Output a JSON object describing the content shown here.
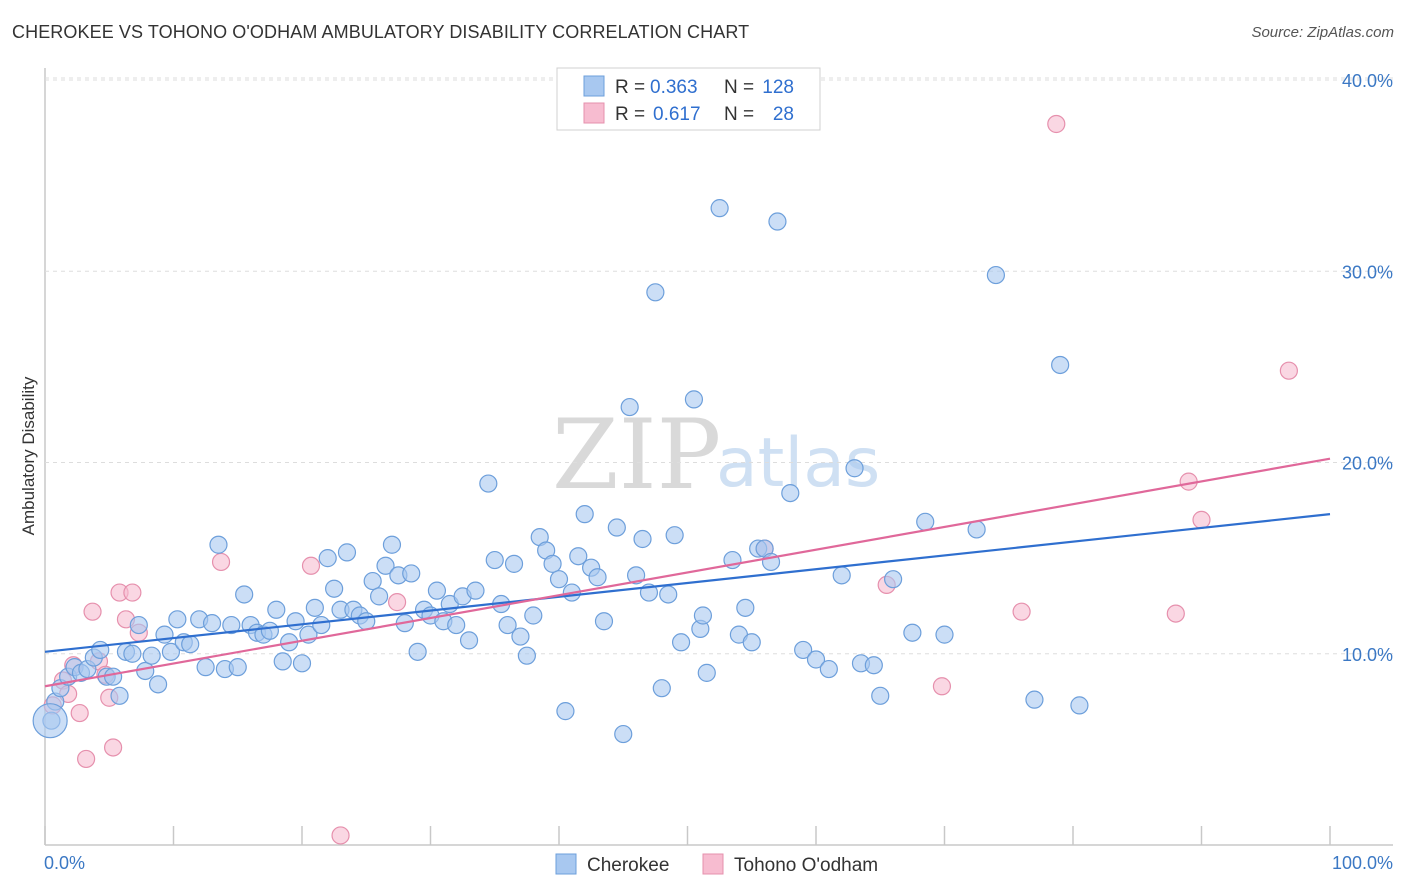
{
  "title": "CHEROKEE VS TOHONO O'ODHAM AMBULATORY DISABILITY CORRELATION CHART",
  "source": "Source: ZipAtlas.com",
  "watermark": {
    "zip": "ZIP",
    "atlas": "atlas"
  },
  "colors": {
    "blue_fill": "#a8c8f0",
    "blue_stroke": "#6d9fdb",
    "blue_line": "#2f6fcf",
    "pink_fill": "#f7bcd0",
    "pink_stroke": "#e690ad",
    "pink_line": "#e0689a",
    "grid": "#dddddd",
    "tick_text": "#3b78c4"
  },
  "legend": {
    "rows": [
      {
        "r_label": "R =",
        "r_value": "0.363",
        "n_label": "N =",
        "n_value": "128"
      },
      {
        "r_label": "R =",
        "r_value": "0.617",
        "n_label": "N =",
        "n_value": "28"
      }
    ]
  },
  "chart_data": {
    "type": "scatter",
    "title": "CHEROKEE VS TOHONO O'ODHAM AMBULATORY DISABILITY CORRELATION CHART",
    "xlabel": "",
    "ylabel": "Ambulatory Disability",
    "xlim": [
      0,
      100
    ],
    "ylim": [
      0,
      40
    ],
    "x_tick_labels": [
      "0.0%",
      "100.0%"
    ],
    "y_ticks": [
      10,
      20,
      30,
      40
    ],
    "y_tick_labels": [
      "10.0%",
      "20.0%",
      "30.0%",
      "40.0%"
    ],
    "grid": true,
    "legend_position": "top-center",
    "series": [
      {
        "name": "Cherokee",
        "color": "#a8c8f0",
        "trend": {
          "x": [
            0,
            100
          ],
          "y": [
            10.1,
            17.3
          ]
        },
        "points": [
          [
            0.5,
            6.5
          ],
          [
            0.8,
            7.5
          ],
          [
            1.2,
            8.2
          ],
          [
            1.8,
            8.8
          ],
          [
            2.3,
            9.3
          ],
          [
            2.8,
            9.0
          ],
          [
            3.3,
            9.2
          ],
          [
            3.8,
            9.8
          ],
          [
            4.3,
            10.2
          ],
          [
            4.8,
            8.8
          ],
          [
            5.3,
            8.8
          ],
          [
            5.8,
            7.8
          ],
          [
            6.3,
            10.1
          ],
          [
            6.8,
            10.0
          ],
          [
            7.3,
            11.5
          ],
          [
            7.8,
            9.1
          ],
          [
            8.3,
            9.9
          ],
          [
            8.8,
            8.4
          ],
          [
            9.3,
            11.0
          ],
          [
            9.8,
            10.1
          ],
          [
            10.3,
            11.8
          ],
          [
            10.8,
            10.6
          ],
          [
            11.3,
            10.5
          ],
          [
            12.0,
            11.8
          ],
          [
            12.5,
            9.3
          ],
          [
            13.0,
            11.6
          ],
          [
            13.5,
            15.7
          ],
          [
            14.0,
            9.2
          ],
          [
            14.5,
            11.5
          ],
          [
            15.0,
            9.3
          ],
          [
            15.5,
            13.1
          ],
          [
            16.0,
            11.5
          ],
          [
            16.5,
            11.1
          ],
          [
            17.0,
            11.0
          ],
          [
            17.5,
            11.2
          ],
          [
            18.0,
            12.3
          ],
          [
            18.5,
            9.6
          ],
          [
            19.0,
            10.6
          ],
          [
            19.5,
            11.7
          ],
          [
            20.0,
            9.5
          ],
          [
            20.5,
            11.0
          ],
          [
            21.0,
            12.4
          ],
          [
            21.5,
            11.5
          ],
          [
            22.0,
            15.0
          ],
          [
            22.5,
            13.4
          ],
          [
            23.0,
            12.3
          ],
          [
            23.5,
            15.3
          ],
          [
            24.0,
            12.3
          ],
          [
            24.5,
            12.0
          ],
          [
            25.0,
            11.7
          ],
          [
            25.5,
            13.8
          ],
          [
            26.0,
            13.0
          ],
          [
            26.5,
            14.6
          ],
          [
            27.0,
            15.7
          ],
          [
            27.5,
            14.1
          ],
          [
            28.0,
            11.6
          ],
          [
            28.5,
            14.2
          ],
          [
            29.0,
            10.1
          ],
          [
            29.5,
            12.3
          ],
          [
            30.0,
            12.0
          ],
          [
            30.5,
            13.3
          ],
          [
            31.0,
            11.7
          ],
          [
            31.5,
            12.6
          ],
          [
            32.0,
            11.5
          ],
          [
            32.5,
            13.0
          ],
          [
            33.0,
            10.7
          ],
          [
            33.5,
            13.3
          ],
          [
            34.5,
            18.9
          ],
          [
            35.0,
            14.9
          ],
          [
            35.5,
            12.6
          ],
          [
            36.0,
            11.5
          ],
          [
            36.5,
            14.7
          ],
          [
            37.0,
            10.9
          ],
          [
            37.5,
            9.9
          ],
          [
            38.0,
            12.0
          ],
          [
            38.5,
            16.1
          ],
          [
            39.0,
            15.4
          ],
          [
            39.5,
            14.7
          ],
          [
            40.0,
            13.9
          ],
          [
            40.5,
            7.0
          ],
          [
            41.0,
            13.2
          ],
          [
            41.5,
            15.1
          ],
          [
            42.0,
            17.3
          ],
          [
            42.5,
            14.5
          ],
          [
            43.5,
            11.7
          ],
          [
            44.5,
            16.6
          ],
          [
            45.0,
            5.8
          ],
          [
            45.5,
            22.9
          ],
          [
            46.0,
            14.1
          ],
          [
            46.5,
            16.0
          ],
          [
            47.0,
            13.2
          ],
          [
            47.5,
            28.9
          ],
          [
            48.0,
            8.2
          ],
          [
            48.5,
            13.1
          ],
          [
            49.0,
            16.2
          ],
          [
            49.5,
            10.6
          ],
          [
            50.5,
            23.3
          ],
          [
            51.0,
            11.3
          ],
          [
            51.5,
            9.0
          ],
          [
            52.5,
            33.3
          ],
          [
            53.5,
            14.9
          ],
          [
            54.0,
            11.0
          ],
          [
            54.5,
            12.4
          ],
          [
            55.0,
            10.6
          ],
          [
            55.5,
            15.5
          ],
          [
            56.0,
            15.5
          ],
          [
            57.0,
            32.6
          ],
          [
            58.0,
            18.4
          ],
          [
            59.0,
            10.2
          ],
          [
            60.0,
            9.7
          ],
          [
            61.0,
            9.2
          ],
          [
            62.0,
            14.1
          ],
          [
            63.0,
            19.7
          ],
          [
            63.5,
            9.5
          ],
          [
            64.5,
            9.4
          ],
          [
            65.0,
            7.8
          ],
          [
            66.0,
            13.9
          ],
          [
            67.5,
            11.1
          ],
          [
            68.5,
            16.9
          ],
          [
            70.0,
            11.0
          ],
          [
            72.5,
            16.5
          ],
          [
            74.0,
            29.8
          ],
          [
            77.0,
            7.6
          ],
          [
            79.0,
            25.1
          ],
          [
            80.5,
            7.3
          ],
          [
            56.5,
            14.8
          ],
          [
            43.0,
            14.0
          ],
          [
            51.2,
            12.0
          ]
        ]
      },
      {
        "name": "Tohono O'odham",
        "color": "#f7bcd0",
        "trend": {
          "x": [
            0,
            100
          ],
          "y": [
            8.3,
            20.2
          ]
        },
        "points": [
          [
            0.6,
            7.3
          ],
          [
            1.4,
            8.6
          ],
          [
            1.8,
            7.9
          ],
          [
            2.2,
            9.4
          ],
          [
            2.7,
            6.9
          ],
          [
            3.2,
            4.5
          ],
          [
            3.7,
            12.2
          ],
          [
            4.2,
            9.6
          ],
          [
            4.7,
            8.9
          ],
          [
            5.0,
            7.7
          ],
          [
            5.3,
            5.1
          ],
          [
            5.8,
            13.2
          ],
          [
            6.3,
            11.8
          ],
          [
            6.8,
            13.2
          ],
          [
            7.3,
            11.1
          ],
          [
            13.7,
            14.8
          ],
          [
            20.7,
            14.6
          ],
          [
            23.0,
            0.5
          ],
          [
            27.4,
            12.7
          ],
          [
            56.0,
            15.5
          ],
          [
            65.5,
            13.6
          ],
          [
            69.8,
            8.3
          ],
          [
            76.0,
            12.2
          ],
          [
            78.7,
            37.7
          ],
          [
            88.0,
            12.1
          ],
          [
            89.0,
            19.0
          ],
          [
            90.0,
            17.0
          ],
          [
            96.8,
            24.8
          ]
        ]
      }
    ]
  }
}
